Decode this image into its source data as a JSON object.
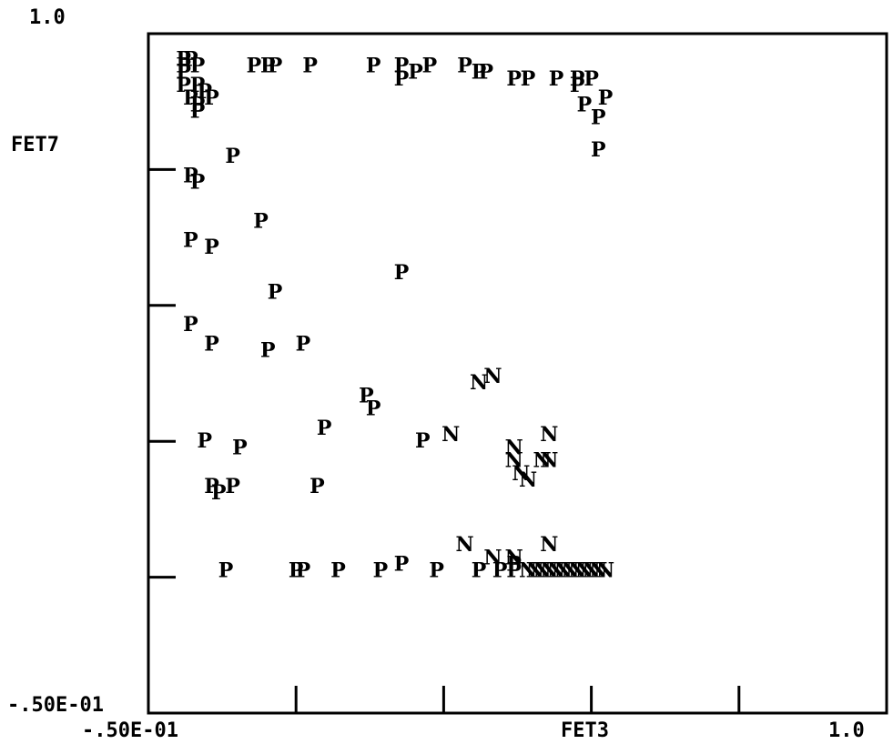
{
  "chart_data": {
    "type": "scatter",
    "xlabel": "FET3",
    "ylabel": "FET7",
    "x_tick_labels": [
      "-.50E-01",
      "1.0"
    ],
    "y_tick_labels": [
      "1.0",
      "-.50E-01"
    ],
    "xlim": [
      -0.05,
      1.0
    ],
    "ylim": [
      -0.05,
      1.0
    ],
    "grid": false,
    "legend": "none",
    "series": [
      {
        "marker": "P",
        "points": [
          [
            0.0,
            0.96
          ],
          [
            0.0,
            0.95
          ],
          [
            0.0,
            0.94
          ],
          [
            0.01,
            0.96
          ],
          [
            0.02,
            0.95
          ],
          [
            0.0,
            0.92
          ],
          [
            0.02,
            0.92
          ],
          [
            0.03,
            0.91
          ],
          [
            0.01,
            0.9
          ],
          [
            0.02,
            0.89
          ],
          [
            0.04,
            0.9
          ],
          [
            0.02,
            0.88
          ],
          [
            0.07,
            0.81
          ],
          [
            0.01,
            0.78
          ],
          [
            0.02,
            0.77
          ],
          [
            0.1,
            0.95
          ],
          [
            0.12,
            0.95
          ],
          [
            0.13,
            0.95
          ],
          [
            0.18,
            0.95
          ],
          [
            0.27,
            0.95
          ],
          [
            0.31,
            0.95
          ],
          [
            0.31,
            0.93
          ],
          [
            0.33,
            0.94
          ],
          [
            0.35,
            0.95
          ],
          [
            0.4,
            0.95
          ],
          [
            0.42,
            0.94
          ],
          [
            0.43,
            0.94
          ],
          [
            0.47,
            0.93
          ],
          [
            0.49,
            0.93
          ],
          [
            0.53,
            0.93
          ],
          [
            0.56,
            0.93
          ],
          [
            0.56,
            0.92
          ],
          [
            0.58,
            0.93
          ],
          [
            0.57,
            0.89
          ],
          [
            0.59,
            0.87
          ],
          [
            0.6,
            0.9
          ],
          [
            0.59,
            0.82
          ],
          [
            0.11,
            0.71
          ],
          [
            0.01,
            0.68
          ],
          [
            0.04,
            0.67
          ],
          [
            0.31,
            0.63
          ],
          [
            0.13,
            0.6
          ],
          [
            0.01,
            0.55
          ],
          [
            0.04,
            0.52
          ],
          [
            0.12,
            0.51
          ],
          [
            0.17,
            0.52
          ],
          [
            0.26,
            0.44
          ],
          [
            0.27,
            0.42
          ],
          [
            0.2,
            0.39
          ],
          [
            0.03,
            0.37
          ],
          [
            0.08,
            0.36
          ],
          [
            0.04,
            0.3
          ],
          [
            0.05,
            0.29
          ],
          [
            0.07,
            0.3
          ],
          [
            0.19,
            0.3
          ],
          [
            0.34,
            0.37
          ],
          [
            0.06,
            0.17
          ],
          [
            0.16,
            0.17
          ],
          [
            0.17,
            0.17
          ],
          [
            0.22,
            0.17
          ],
          [
            0.28,
            0.17
          ],
          [
            0.31,
            0.18
          ],
          [
            0.36,
            0.17
          ],
          [
            0.42,
            0.17
          ],
          [
            0.45,
            0.17
          ],
          [
            0.47,
            0.17
          ],
          [
            0.47,
            0.18
          ]
        ]
      },
      {
        "marker": "N",
        "points": [
          [
            0.42,
            0.46
          ],
          [
            0.44,
            0.47
          ],
          [
            0.38,
            0.38
          ],
          [
            0.47,
            0.36
          ],
          [
            0.52,
            0.38
          ],
          [
            0.47,
            0.34
          ],
          [
            0.51,
            0.34
          ],
          [
            0.52,
            0.34
          ],
          [
            0.48,
            0.32
          ],
          [
            0.49,
            0.31
          ],
          [
            0.4,
            0.21
          ],
          [
            0.52,
            0.21
          ],
          [
            0.47,
            0.19
          ],
          [
            0.44,
            0.19
          ],
          [
            0.49,
            0.17
          ],
          [
            0.5,
            0.17
          ],
          [
            0.51,
            0.17
          ],
          [
            0.52,
            0.17
          ],
          [
            0.53,
            0.17
          ],
          [
            0.54,
            0.17
          ],
          [
            0.55,
            0.17
          ],
          [
            0.56,
            0.17
          ],
          [
            0.57,
            0.17
          ],
          [
            0.58,
            0.17
          ],
          [
            0.59,
            0.17
          ],
          [
            0.6,
            0.17
          ]
        ]
      }
    ]
  }
}
